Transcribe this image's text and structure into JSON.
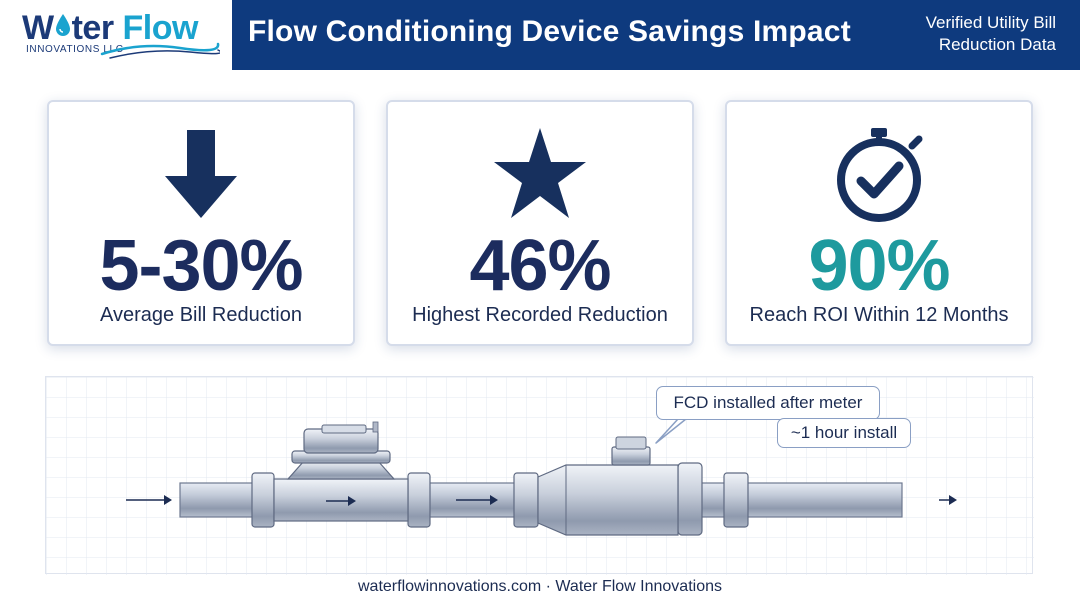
{
  "header": {
    "logo": {
      "word_1": "W",
      "word_2": "ter",
      "word_3": " Flow",
      "subtitle": "INNOVATIONS LLC"
    },
    "title": "Flow Conditioning Device Savings Impact",
    "subtitle": "Verified Utility Bill Reduction Data"
  },
  "stats": [
    {
      "icon": "down-arrow-icon",
      "value": "5-30%",
      "label": "Average Bill Reduction",
      "color": "#1c2c5e"
    },
    {
      "icon": "star-icon",
      "value": "46%",
      "label": "Highest Recorded Reduction",
      "color": "#1c2c5e"
    },
    {
      "icon": "clock-check-icon",
      "value": "90%",
      "label": "Reach ROI Within 12 Months",
      "color": "#1e9a9e"
    }
  ],
  "diagram": {
    "callout_main": "FCD installed after meter",
    "callout_sub": "~1 hour install"
  },
  "footer": "waterflowinnovations.com · Water Flow Innovations",
  "colors": {
    "brand_navy": "#0e3a7e",
    "brand_blue": "#1aa3cf",
    "accent_teal": "#1e9a9e",
    "text_navy": "#1c2c5e"
  }
}
